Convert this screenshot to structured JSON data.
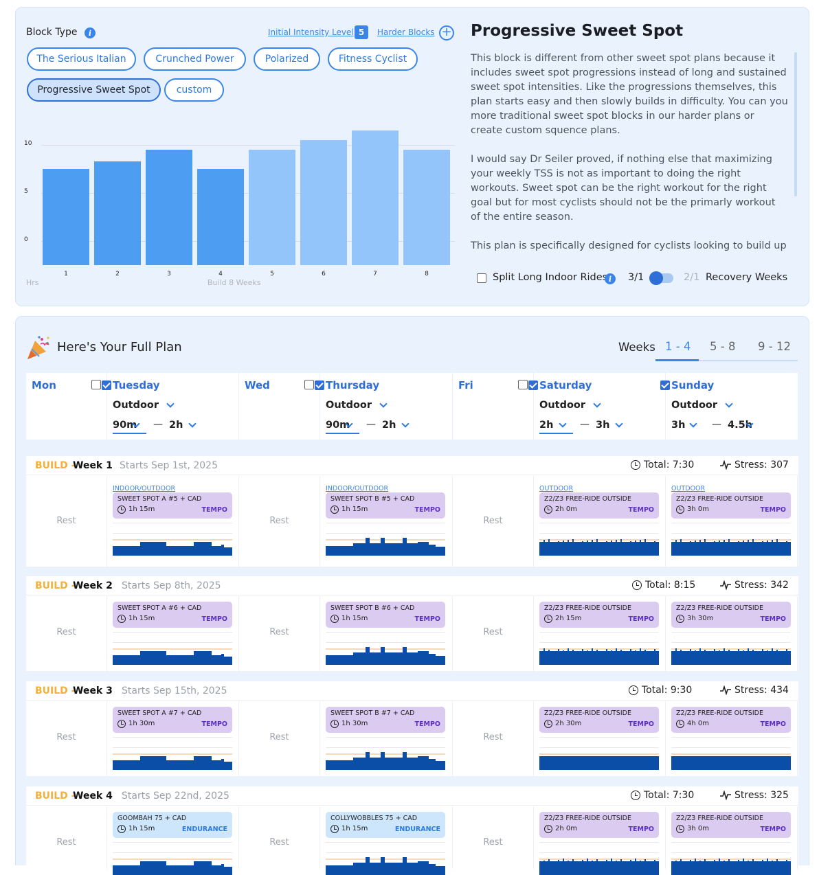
{
  "block_type": {
    "label": "Block Type",
    "intensity_label": "Initial Intensity Level",
    "intensity_value": "5",
    "harder_label": "Harder Blocks",
    "chips": [
      {
        "label": "The Serious Italian"
      },
      {
        "label": "Crunched Power"
      },
      {
        "label": "Polarized"
      },
      {
        "label": "Fitness Cyclist"
      },
      {
        "label": "Progressive Sweet Spot",
        "selected": true
      },
      {
        "label": "custom"
      }
    ]
  },
  "chart_data": {
    "type": "bar",
    "categories": [
      "1",
      "2",
      "3",
      "4",
      "5",
      "6",
      "7",
      "8"
    ],
    "values": [
      7.5,
      8.3,
      9.5,
      7.5,
      9.5,
      10.5,
      11.5,
      9.5
    ],
    "yticks": [
      "10",
      "5",
      "0"
    ],
    "ylabel": "Hrs",
    "xlabel": "Build 8 Weeks",
    "ylim": [
      -2.5,
      12.5
    ],
    "colors": [
      "#4d9df2",
      "#4d9df2",
      "#4d9df2",
      "#4d9df2",
      "#93c5fa",
      "#93c5fa",
      "#93c5fa",
      "#93c5fa"
    ]
  },
  "plan": {
    "title": "Progressive Sweet Spot",
    "paragraphs": [
      "This block is different from other sweet spot plans because it includes sweet spot progressions instead of long and sustained sweet spot intensities. Like the progressions themselves, this plan starts easy and then slowly builds in difficulty. You can you more traditional sweet spot blocks in our harder plans or create custom squence plans.",
      "I would say Dr Seiler proved, if nothing else that maximizing your weekly TSS is not as important to doing the right workouts. Sweet spot can be the right workout for the right goal but for most cyclists should not be the primarly workout of the entire season.",
      "This plan is specifically designed for cyclists looking to build up their diesel engine without brutal intensities. As opposed to"
    ],
    "split_label": "Split Long Indoor Rides",
    "ratio_left": "3/1",
    "ratio_right": "2/1",
    "recovery_label": "Recovery Weeks"
  },
  "full_plan": {
    "title": "Here's Your Full Plan",
    "weeks_label": "Weeks",
    "week_tabs": [
      "1 - 4",
      "5 - 8",
      "9 - 12"
    ]
  },
  "days": [
    {
      "name": "Mon",
      "checked": false
    },
    {
      "name": "Tuesday",
      "checked": true,
      "mode": "Outdoor",
      "min": "90m",
      "max": "2h"
    },
    {
      "name": "Wed",
      "checked": false
    },
    {
      "name": "Thursday",
      "checked": true,
      "mode": "Outdoor",
      "min": "90m",
      "max": "2h"
    },
    {
      "name": "Fri",
      "checked": false
    },
    {
      "name": "Saturday",
      "checked": true,
      "mode": "Outdoor",
      "min": "2h",
      "max": "3h"
    },
    {
      "name": "Sunday",
      "checked": true,
      "mode": "Outdoor",
      "min": "3h",
      "max": "4.5h"
    }
  ],
  "rest_label": "Rest",
  "weeks": [
    {
      "phase": "BUILD - ",
      "week": "Week 1",
      "starts": "Starts Sep 1st, 2025",
      "total": "Total: 7:30",
      "stress": "Stress: 307",
      "types": [
        "INDOOR/OUTDOOR",
        "INDOOR/OUTDOOR",
        "OUTDOOR",
        "OUTDOOR"
      ],
      "workouts": [
        {
          "name": "SWEET SPOT A #5 + CAD",
          "dur": "1h 15m",
          "tag": "TEMPO"
        },
        {
          "name": "SWEET SPOT B #5 + CAD",
          "dur": "1h 15m",
          "tag": "TEMPO"
        },
        {
          "name": "Z2/Z3 FREE-RIDE OUTSIDE",
          "dur": "2h 0m",
          "tag": "TEMPO"
        },
        {
          "name": "Z2/Z3 FREE-RIDE OUTSIDE",
          "dur": "3h 0m",
          "tag": "TEMPO"
        }
      ]
    },
    {
      "phase": "BUILD - ",
      "week": "Week 2",
      "starts": "Starts Sep 8th, 2025",
      "total": "Total: 8:15",
      "stress": "Stress: 342",
      "types": [
        "",
        "",
        "",
        ""
      ],
      "workouts": [
        {
          "name": "SWEET SPOT A #6 + CAD",
          "dur": "1h 15m",
          "tag": "TEMPO"
        },
        {
          "name": "SWEET SPOT B #6 + CAD",
          "dur": "1h 15m",
          "tag": "TEMPO"
        },
        {
          "name": "Z2/Z3 FREE-RIDE OUTSIDE",
          "dur": "2h 15m",
          "tag": "TEMPO"
        },
        {
          "name": "Z2/Z3 FREE-RIDE OUTSIDE",
          "dur": "3h 30m",
          "tag": "TEMPO"
        }
      ]
    },
    {
      "phase": "BUILD - ",
      "week": "Week 3",
      "starts": "Starts Sep 15th, 2025",
      "total": "Total: 9:30",
      "stress": "Stress: 434",
      "types": [
        "",
        "",
        "",
        ""
      ],
      "workouts": [
        {
          "name": "SWEET SPOT A #7 + CAD",
          "dur": "1h 30m",
          "tag": "TEMPO"
        },
        {
          "name": "SWEET SPOT B #7 + CAD",
          "dur": "1h 30m",
          "tag": "TEMPO"
        },
        {
          "name": "Z2/Z3 FREE-RIDE OUTSIDE",
          "dur": "2h 30m",
          "tag": "TEMPO"
        },
        {
          "name": "Z2/Z3 FREE-RIDE OUTSIDE",
          "dur": "4h 0m",
          "tag": "TEMPO"
        }
      ]
    },
    {
      "phase": "BUILD - ",
      "week": "Week 4",
      "starts": "Starts Sep 22nd, 2025",
      "total": "Total: 7:30",
      "stress": "Stress: 325",
      "types": [
        "",
        "",
        "",
        ""
      ],
      "workouts": [
        {
          "name": "GOOMBAH 75 + CAD",
          "dur": "1h 15m",
          "tag": "ENDURANCE"
        },
        {
          "name": "COLLYWOBBLES 75 + CAD",
          "dur": "1h 15m",
          "tag": "ENDURANCE"
        },
        {
          "name": "Z2/Z3 FREE-RIDE OUTSIDE",
          "dur": "2h 0m",
          "tag": "TEMPO"
        },
        {
          "name": "Z2/Z3 FREE-RIDE OUTSIDE",
          "dur": "3h 0m",
          "tag": "TEMPO"
        }
      ]
    }
  ]
}
